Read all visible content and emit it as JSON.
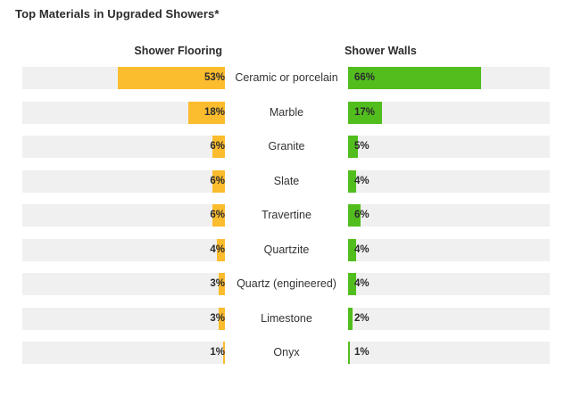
{
  "title": "Top Materials in Upgraded Showers*",
  "colors": {
    "flooring": "#FBBC2D",
    "walls": "#52BE1E",
    "track": "#F0F0F0",
    "text": "#2B2B2B"
  },
  "chart_data": {
    "type": "bar",
    "title": "Top Materials in Upgraded Showers*",
    "categories": [
      "Ceramic or porcelain",
      "Marble",
      "Granite",
      "Slate",
      "Travertine",
      "Quartzite",
      "Quartz (engineered)",
      "Limestone",
      "Onyx"
    ],
    "series": [
      {
        "name": "Shower Flooring",
        "values": [
          53,
          18,
          6,
          6,
          6,
          4,
          3,
          3,
          1
        ]
      },
      {
        "name": "Shower Walls",
        "values": [
          66,
          17,
          5,
          4,
          6,
          4,
          4,
          2,
          1
        ]
      }
    ],
    "value_suffix": "%",
    "xlim": [
      0,
      100
    ],
    "orientation": "horizontal-butterfly",
    "grid": false
  }
}
